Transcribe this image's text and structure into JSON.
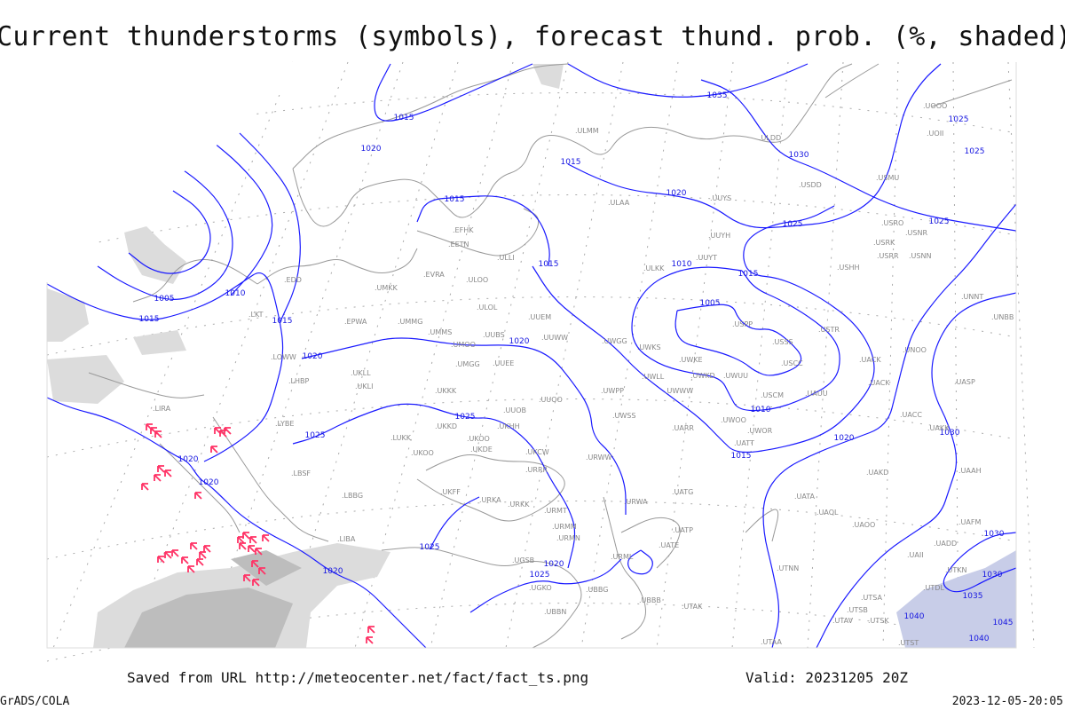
{
  "title": "Current thunderstorms (symbols), forecast thund. prob. (%, shaded)",
  "footer": {
    "saved_from": "Saved from URL http://meteocenter.net/fact/fact_ts.png",
    "valid": "Valid: 20231205 20Z",
    "software": "GrADS/COLA",
    "timestamp": "2023-12-05-20:05"
  },
  "colors": {
    "isobar": "#1a1aff",
    "coastline": "#999999",
    "station_label": "#888888",
    "thunderstorm_symbol": "#ff3366",
    "probability_shading_light": "#dcdcdc",
    "probability_shading_dark": "#bdbdbd"
  },
  "legend_icons": {
    "thunderstorm": "thunderstorm-symbol-icon"
  },
  "isobar_labels": [
    "1035",
    "1015",
    "1020",
    "1015",
    "1030",
    "1025",
    "1025",
    "1020",
    "1015",
    "1025",
    "1025",
    "1015",
    "1010",
    "1015",
    "1005",
    "1010",
    "1015",
    "1015",
    "1005",
    "1020",
    "1020",
    "1025",
    "1025",
    "1010",
    "1015",
    "1020",
    "1030",
    "1020",
    "1020",
    "1025",
    "1020",
    "1025",
    "1020",
    "1030",
    "1030",
    "1035",
    "1040",
    "1045",
    "1040"
  ],
  "stations": [
    "EDD",
    "LKT",
    "LOWW",
    "LHBP",
    "LYBE",
    "LBSF",
    "LBBG",
    "LIRA",
    "EPWA",
    "UMMG",
    "UMKK",
    "EVRA",
    "ULOO",
    "EFHK",
    "EETN",
    "ULLI",
    "ULOL",
    "UMMS",
    "UMOO",
    "UUBS",
    "UMGG",
    "UUEE",
    "UUEM",
    "UUWW",
    "UKLL",
    "UKLI",
    "UKKK",
    "UUOO",
    "UUOB",
    "UKHH",
    "UKOO",
    "UKKD",
    "UKDE",
    "UKOO",
    "LUKK",
    "UKFF",
    "URKA",
    "URKK",
    "URRR",
    "UKCW",
    "URWW",
    "UWPP",
    "UWGG",
    "UWSS",
    "URMT",
    "URMM",
    "URMN",
    "URWA",
    "UATG",
    "UATP",
    "UATE",
    "URML",
    "UBBB",
    "UTAK",
    "UGSB",
    "UGKO",
    "UBBG",
    "UBBN",
    "ULMM",
    "ULAA",
    "ULDD",
    "USDD",
    "USMU",
    "USRO",
    "USRK",
    "USNR",
    "USRR",
    "USNN",
    "USHH",
    "USPP",
    "USSS",
    "USCC",
    "USTR",
    "UACK",
    "UACK",
    "UNOO",
    "UWKS",
    "UWKE",
    "UWKD",
    "UWUU",
    "UWLL",
    "UWWW",
    "USCM",
    "UAUU",
    "UWOO",
    "UARR",
    "UWOR",
    "UATT",
    "UACC",
    "UAKK",
    "UASP",
    "UNNT",
    "UNBB",
    "UAKD",
    "UAAH",
    "UATA",
    "UAOL",
    "UAOO",
    "UAII",
    "UADD",
    "UAFM",
    "UTAA",
    "UTSA",
    "UTSB",
    "UTAV",
    "UTSK",
    "UTST",
    "UTNN",
    "UTDL",
    "UTKN",
    "UOOO",
    "UOII",
    "UUYH",
    "UUYS",
    "ULKK",
    "UUYT",
    "LIBA"
  ]
}
